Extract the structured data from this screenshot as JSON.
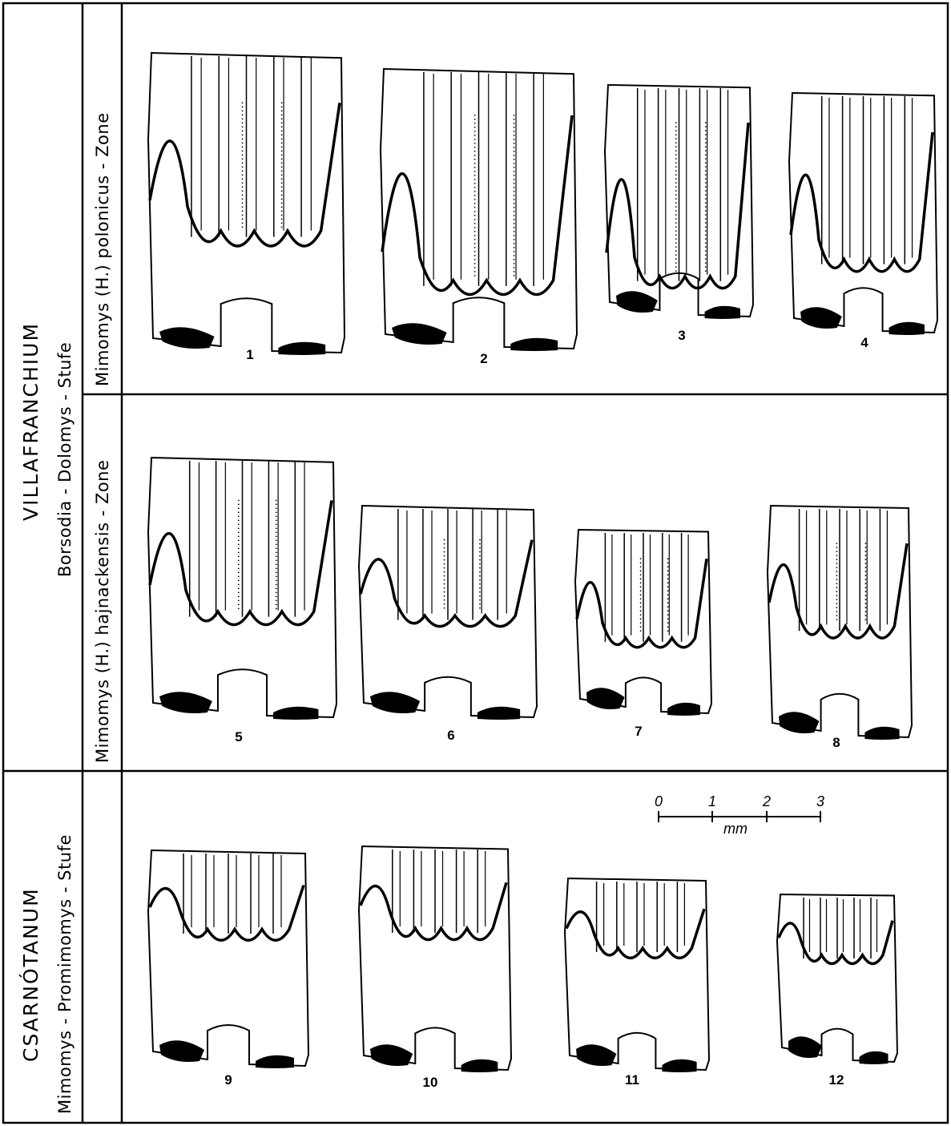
{
  "stages": [
    {
      "label": "VILLAFRANCHIUM"
    },
    {
      "label": "CSARNÓTANUM"
    }
  ],
  "stufen": [
    {
      "label": "Borsodia - Dolomys  -  Stufe"
    },
    {
      "label": "Mimomys - Promimomys  -  Stufe"
    }
  ],
  "zones": [
    {
      "label": "Mimomys (H.) polonicus  -  Zone"
    },
    {
      "label": "Mimomys (H.) hajnackensis - Zone"
    }
  ],
  "specimens": [
    {
      "number": "1"
    },
    {
      "number": "2"
    },
    {
      "number": "3"
    },
    {
      "number": "4"
    },
    {
      "number": "5"
    },
    {
      "number": "6"
    },
    {
      "number": "7"
    },
    {
      "number": "8"
    },
    {
      "number": "9"
    },
    {
      "number": "10"
    },
    {
      "number": "11"
    },
    {
      "number": "12"
    }
  ],
  "scale": {
    "ticks": [
      "0",
      "1",
      "2",
      "3"
    ],
    "unit": "mm"
  }
}
